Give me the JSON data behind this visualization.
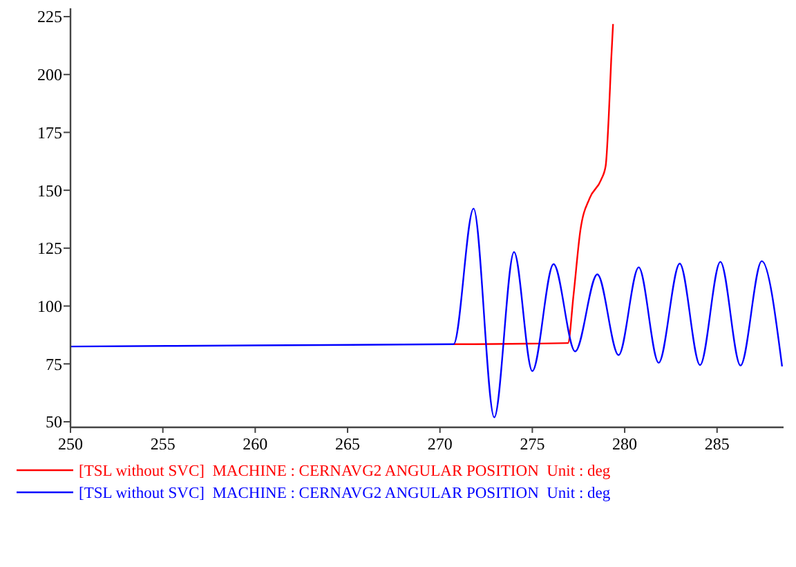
{
  "chart_data": {
    "type": "line",
    "xlim": [
      250,
      288.6
    ],
    "ylim": [
      47.6,
      228.6
    ],
    "xticks": [
      250,
      255,
      260,
      265,
      270,
      275,
      280,
      285
    ],
    "yticks": [
      50,
      75,
      100,
      125,
      150,
      175,
      200,
      225
    ],
    "grid": false,
    "legend": "bottom",
    "marker": "none",
    "line_style": "solid",
    "series": [
      {
        "name": "[TSL without SVC]  MACHINE : CERNAVG2 ANGULAR POSITION  Unit : deg",
        "color": "#ff0000",
        "x": [
          270.74,
          276.93,
          277.23,
          277.6,
          278.1,
          278.72,
          278.97,
          279.14,
          279.27,
          279.37
        ],
        "values": [
          83.5,
          84,
          104.7,
          132.6,
          146.5,
          154.5,
          160.5,
          182.4,
          206.3,
          221.8
        ]
      },
      {
        "name": "[TSL without SVC]  MACHINE : CERNAVG2 ANGULAR POSITION  Unit : deg",
        "color": "#0000ff",
        "x": [
          250,
          260,
          270.74,
          271.82,
          272.94,
          274.01,
          275.0,
          276.15,
          277.32,
          278.52,
          279.67,
          280.76,
          281.84,
          282.98,
          284.08,
          285.18,
          286.27,
          287.42,
          288.52
        ],
        "values": [
          82.5,
          83,
          83.5,
          142.1,
          51.9,
          123.3,
          71.9,
          118.1,
          80.4,
          113.7,
          78.8,
          116.7,
          75.5,
          118.3,
          74.5,
          119.1,
          74.3,
          119.4,
          73.9
        ]
      }
    ]
  }
}
